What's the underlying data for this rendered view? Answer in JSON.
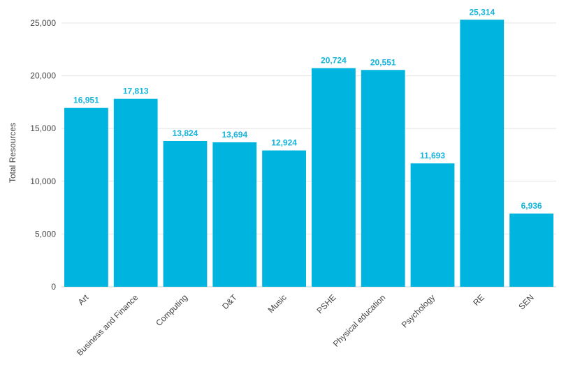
{
  "chart_data": {
    "type": "bar",
    "title": "",
    "xlabel": "",
    "ylabel": "Total Resources",
    "categories": [
      "Art",
      "Business and Finance",
      "Computing",
      "D&T",
      "Music",
      "PSHE",
      "Physical education",
      "Psychology",
      "RE",
      "SEN"
    ],
    "values": [
      16951,
      17813,
      13824,
      13694,
      12924,
      20724,
      20551,
      11693,
      25314,
      6936
    ],
    "data_labels": [
      "16,951",
      "17,813",
      "13,824",
      "13,694",
      "12,924",
      "20,724",
      "20,551",
      "11,693",
      "25,314",
      "6,936"
    ],
    "ylim": [
      0,
      25000
    ],
    "yticks": [
      0,
      5000,
      10000,
      15000,
      20000,
      25000
    ],
    "ytick_labels": [
      "0",
      "5,000",
      "10,000",
      "15,000",
      "20,000",
      "25,000"
    ],
    "grid": true,
    "legend": "none",
    "colors": {
      "bar": "#00b4e0",
      "label": "#16b4dc"
    }
  }
}
